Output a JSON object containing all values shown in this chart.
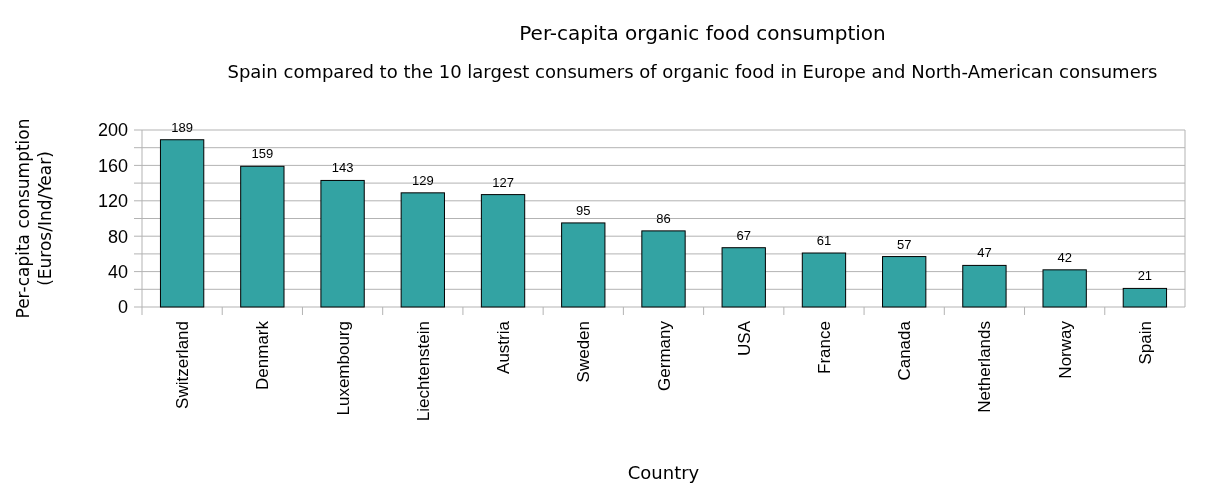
{
  "chart_data": {
    "type": "bar",
    "title": "Per-capita organic food consumption",
    "subtitle": "Spain compared to the 10 largest consumers of organic food in Europe and North-American consumers",
    "xlabel": "Country",
    "ylabel": "Per-capita consumption\n(Euros/Ind/Year)",
    "categories": [
      "Switzerland",
      "Denmark",
      "Luxembourg",
      "Liechtenstein",
      "Austria",
      "Sweden",
      "Germany",
      "USA",
      "France",
      "Canada",
      "Netherlands",
      "Norway",
      "Spain"
    ],
    "values": [
      189,
      159,
      143,
      129,
      127,
      95,
      86,
      67,
      61,
      57,
      47,
      42,
      21
    ],
    "color": "#33a3a3",
    "ylim": [
      0,
      200
    ],
    "yticks": [
      0,
      {
        "value": 20,
        "label": null
      },
      40,
      {
        "value": 60,
        "label": null
      },
      80,
      {
        "value": 100,
        "label": null
      },
      120,
      {
        "value": 140,
        "label": null
      },
      160,
      {
        "value": 180,
        "label": null
      },
      200
    ],
    "grid": "y",
    "data_labels": true
  }
}
